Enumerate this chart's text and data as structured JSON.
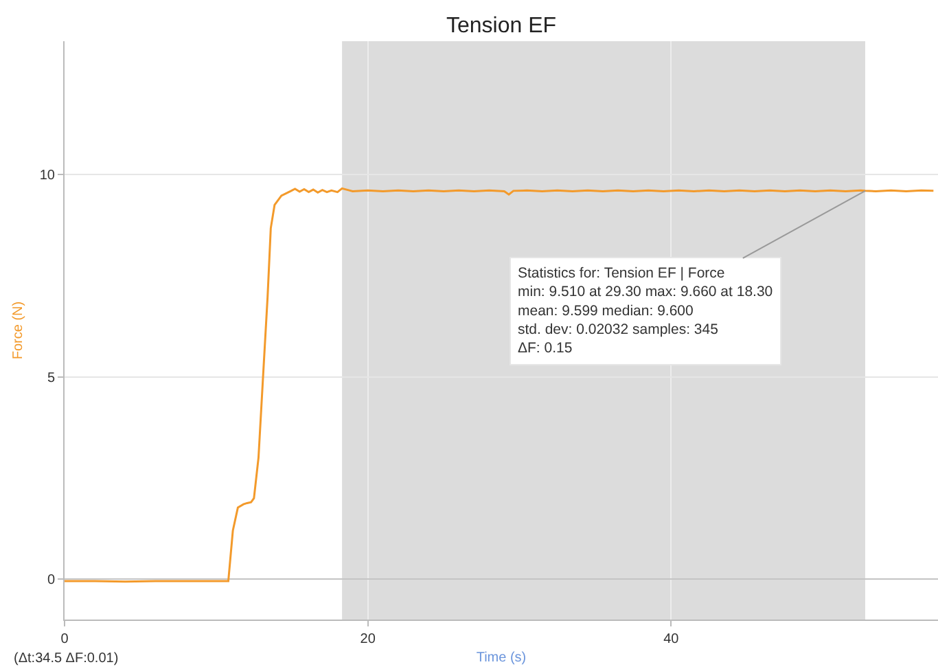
{
  "chart_data": {
    "type": "line",
    "title": "Tension EF",
    "xlabel": "Time (s)",
    "ylabel": "Force (N)",
    "x": [
      0,
      2,
      4,
      6,
      8,
      10,
      10.8,
      11.1,
      11.43,
      11.8,
      12.04,
      12.3,
      12.49,
      12.79,
      13.1,
      13.39,
      13.6,
      13.85,
      14.3,
      14.9,
      15.2,
      15.5,
      15.8,
      16.1,
      16.4,
      16.7,
      17.0,
      17.3,
      17.6,
      18.0,
      18.3,
      19,
      20,
      21,
      22,
      23,
      24,
      25,
      26,
      27,
      28,
      29,
      29.3,
      29.6,
      30.5,
      31.5,
      32.5,
      33.5,
      34.5,
      35.5,
      36.5,
      37.5,
      38.5,
      39.5,
      40.5,
      41.5,
      42.5,
      43.5,
      44.5,
      45.5,
      46.5,
      47.5,
      48.5,
      49.5,
      50.5,
      51.5,
      52.5,
      52.8,
      53.5,
      54.5,
      55.5,
      56.5,
      57.3
    ],
    "series": [
      {
        "color": "#f39a2b",
        "values": [
          -0.05,
          -0.05,
          -0.06,
          -0.05,
          -0.05,
          -0.05,
          -0.05,
          1.2,
          1.77,
          1.85,
          1.88,
          1.9,
          2.0,
          3.0,
          5.07,
          6.98,
          8.68,
          9.25,
          9.48,
          9.59,
          9.65,
          9.58,
          9.64,
          9.57,
          9.63,
          9.56,
          9.62,
          9.57,
          9.61,
          9.57,
          9.66,
          9.59,
          9.61,
          9.59,
          9.61,
          9.59,
          9.61,
          9.59,
          9.61,
          9.59,
          9.61,
          9.59,
          9.51,
          9.6,
          9.61,
          9.59,
          9.61,
          9.59,
          9.61,
          9.59,
          9.61,
          9.59,
          9.61,
          9.59,
          9.61,
          9.59,
          9.61,
          9.59,
          9.61,
          9.59,
          9.61,
          9.59,
          9.61,
          9.59,
          9.61,
          9.59,
          9.61,
          9.6,
          9.59,
          9.61,
          9.59,
          9.61,
          9.6
        ]
      }
    ],
    "xlim": [
      0,
      57.6
    ],
    "ylim": [
      -1,
      13.3
    ],
    "xticks": [
      0,
      20,
      40
    ],
    "yticks": [
      0,
      5,
      10
    ],
    "grid": true,
    "marker": "none",
    "line_style": "solid",
    "bands": [
      {
        "axis": "x",
        "from": 18.3,
        "to": 52.8,
        "color": "#dcdcdc"
      }
    ],
    "annotations": [
      {
        "text": "Statistics for: Tension EF | Force\nmin: 9.510 at 29.30 max: 9.660 at 18.30\nmean: 9.599 median: 9.600\nstd. dev: 0.02032 samples: 345\nΔF: 0.15",
        "x": 52.8,
        "y": 9.6
      },
      "(Δt:34.5 ΔF:0.01)"
    ]
  }
}
